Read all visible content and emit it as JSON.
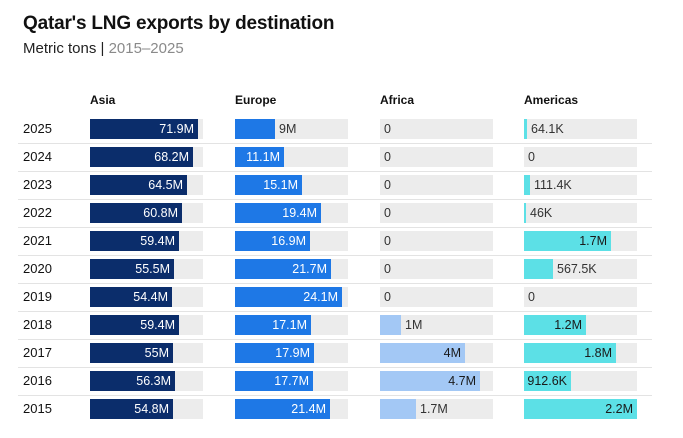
{
  "title": "Qatar's LNG exports by destination",
  "subtitle": {
    "unit": "Metric tons",
    "separator": " | ",
    "range": "2015–2025"
  },
  "colors": {
    "asia": "#0b2d6b",
    "europe": "#1e78e6",
    "africa": "#a3c8f5",
    "americas": "#5ce0e6",
    "track": "#ececec"
  },
  "chart_data": {
    "type": "bar",
    "title": "Qatar's LNG exports by destination",
    "subtitle": "Metric tons | 2015–2025",
    "categories": [
      "2025",
      "2024",
      "2023",
      "2022",
      "2021",
      "2020",
      "2019",
      "2018",
      "2017",
      "2016",
      "2015"
    ],
    "series": [
      {
        "name": "Asia",
        "key": "asia",
        "max": 75,
        "values": [
          71.9,
          68.2,
          64.5,
          60.8,
          59.4,
          55.5,
          54.4,
          59.4,
          55,
          56.3,
          54.8
        ],
        "labels": [
          "71.9M",
          "68.2M",
          "64.5M",
          "60.8M",
          "59.4M",
          "55.5M",
          "54.4M",
          "59.4M",
          "55M",
          "56.3M",
          "54.8M"
        ]
      },
      {
        "name": "Europe",
        "key": "europe",
        "max": 25.5,
        "values": [
          9,
          11.1,
          15.1,
          19.4,
          16.9,
          21.7,
          24.1,
          17.1,
          17.9,
          17.7,
          21.4
        ],
        "labels": [
          "9M",
          "11.1M",
          "15.1M",
          "19.4M",
          "16.9M",
          "21.7M",
          "24.1M",
          "17.1M",
          "17.9M",
          "17.7M",
          "21.4M"
        ]
      },
      {
        "name": "Africa",
        "key": "africa",
        "max": 5.3,
        "values": [
          0,
          0,
          0,
          0,
          0,
          0,
          0,
          1,
          4,
          4.7,
          1.7
        ],
        "labels": [
          "0",
          "0",
          "0",
          "0",
          "0",
          "0",
          "0",
          "1M",
          "4M",
          "4.7M",
          "1.7M"
        ]
      },
      {
        "name": "Americas",
        "key": "americas",
        "max": 2.2,
        "values": [
          0.0641,
          0,
          0.1114,
          0.046,
          1.7,
          0.5675,
          0,
          1.2,
          1.8,
          0.9126,
          2.2
        ],
        "labels": [
          "64.1K",
          "0",
          "111.4K",
          "46K",
          "1.7M",
          "567.5K",
          "0",
          "1.2M",
          "1.8M",
          "912.6K",
          "2.2M"
        ]
      }
    ]
  }
}
